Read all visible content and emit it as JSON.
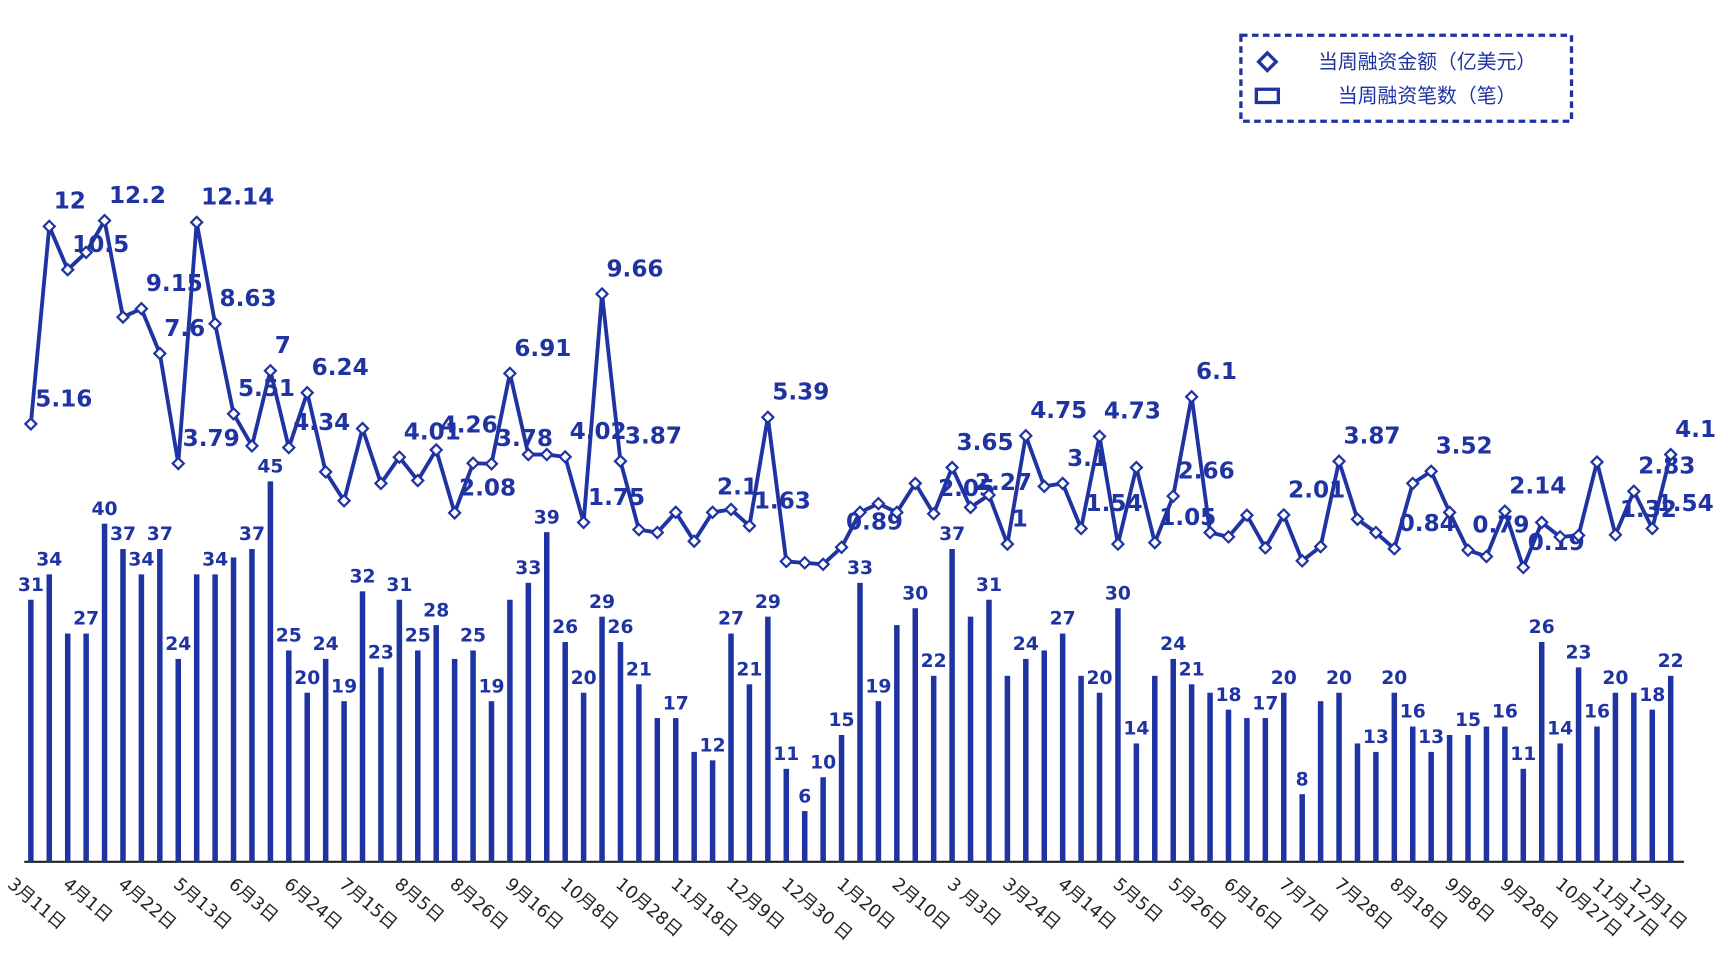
{
  "chart_data": {
    "type": "bar",
    "categories": [
      "3月11日",
      null,
      null,
      "4月1日",
      null,
      null,
      "4月22日",
      null,
      null,
      "5月13日",
      null,
      null,
      "6月3日",
      null,
      null,
      "6月24日",
      null,
      null,
      "7月15日",
      null,
      null,
      "8月5日",
      null,
      null,
      "8月26日",
      null,
      null,
      "9月16日",
      null,
      null,
      "10月8日",
      null,
      null,
      "10月28日",
      null,
      null,
      "11月18日",
      null,
      null,
      "12月9日",
      null,
      null,
      "12月30 日",
      null,
      null,
      "1月20日",
      null,
      null,
      "2月10日",
      null,
      null,
      "3 月3日",
      null,
      null,
      "3月24日",
      null,
      null,
      "4月14日",
      null,
      null,
      "5月5日",
      null,
      null,
      "5月26日",
      null,
      null,
      "6月16日",
      null,
      null,
      "7月7日",
      null,
      null,
      "7月28日",
      null,
      null,
      "8月18日",
      null,
      null,
      "9月8日",
      null,
      null,
      "9月28日",
      null,
      null,
      "10月27日",
      null,
      "11月17日",
      null,
      "12月1日",
      null
    ],
    "series": [
      {
        "name": "当周融资金额（亿美元）",
        "type": "line",
        "axis": "y2",
        "color": "#1f33a3",
        "values": [
          5.16,
          12,
          10.5,
          11.1,
          12.2,
          8.86,
          9.15,
          7.6,
          3.79,
          12.14,
          8.63,
          5.51,
          4.4,
          7,
          4.34,
          6.24,
          3.5,
          2.5,
          5.0,
          3.1,
          4.01,
          3.2,
          4.26,
          2.08,
          3.8,
          3.78,
          6.91,
          4.1,
          4.1,
          4.02,
          1.75,
          9.66,
          3.87,
          1.5,
          1.4,
          2.1,
          1.1,
          2.1,
          2.2,
          1.63,
          5.39,
          0.4,
          0.35,
          0.3,
          0.89,
          2.1,
          2.4,
          2.1,
          3.1,
          2.05,
          3.65,
          2.27,
          2.7,
          1,
          4.75,
          3.0,
          3.1,
          1.54,
          4.73,
          1.0,
          3.65,
          1.05,
          2.66,
          6.1,
          1.4,
          1.25,
          2.0,
          0.87,
          2.01,
          0.42,
          0.91,
          3.87,
          1.86,
          1.4,
          0.84,
          3.1,
          3.52,
          2.1,
          0.79,
          0.57,
          2.14,
          0.19,
          1.75,
          1.25,
          1.3,
          3.84,
          1.32,
          2.83,
          1.54,
          4.1
        ],
        "value_labels": [
          "5.16",
          "12",
          "10.5",
          null,
          "12.2",
          null,
          "9.15",
          "7.6",
          "3.79",
          "12.14",
          "8.63",
          "5.51",
          null,
          "7",
          "4.34",
          "6.24",
          null,
          null,
          null,
          null,
          "4.01",
          null,
          "4.26",
          "2.08",
          null,
          "3.78",
          "6.91",
          null,
          null,
          "4.02",
          "1.75",
          "9.66",
          "3.87",
          null,
          null,
          null,
          null,
          "2.1",
          null,
          "1.63",
          "5.39",
          null,
          null,
          null,
          "0.89",
          null,
          null,
          null,
          null,
          "2.05",
          "3.65",
          "2.27",
          null,
          "1",
          "4.75",
          null,
          "3.1",
          "1.54",
          "4.73",
          null,
          null,
          "1.05",
          "2.66",
          "6.1",
          null,
          null,
          null,
          null,
          "2.01",
          null,
          null,
          "3.87",
          null,
          null,
          "0.84",
          null,
          "3.52",
          null,
          "0.79",
          null,
          "2.14",
          "0.19",
          null,
          null,
          null,
          null,
          "1.32",
          "2.83",
          "1.54",
          "4.1"
        ]
      },
      {
        "name": "当周融资笔数（笔）",
        "type": "bar",
        "color": "#1f33a3",
        "values": [
          31,
          34,
          27,
          27,
          40,
          37,
          34,
          37,
          24,
          34,
          34,
          36,
          37,
          45,
          25,
          20,
          24,
          19,
          32,
          23,
          31,
          25,
          28,
          24,
          25,
          19,
          31,
          33,
          39,
          26,
          20,
          29,
          26,
          21,
          17,
          17,
          13,
          12,
          27,
          21,
          29,
          11,
          6,
          10,
          15,
          33,
          19,
          28,
          30,
          22,
          37,
          29,
          31,
          22,
          24,
          25,
          27,
          22,
          20,
          30,
          14,
          22,
          24,
          21,
          20,
          18,
          17,
          17,
          20,
          8,
          19,
          20,
          14,
          13,
          20,
          16,
          13,
          15,
          15,
          16,
          16,
          11,
          26,
          14,
          23,
          16,
          20,
          20,
          18,
          22
        ],
        "value_labels": [
          "31",
          "34",
          null,
          "27",
          "40",
          "37",
          "34",
          "37",
          "24",
          null,
          "34",
          null,
          "37",
          "45",
          "25",
          "20",
          "24",
          "19",
          "32",
          "23",
          "31",
          "25",
          "28",
          null,
          "25",
          "19",
          null,
          "33",
          "39",
          "26",
          "20",
          "29",
          "26",
          "21",
          null,
          "17",
          null,
          "12",
          "27",
          "21",
          "29",
          "11",
          "6",
          "10",
          "15",
          "33",
          "19",
          null,
          "30",
          "22",
          "37",
          null,
          "31",
          null,
          "24",
          null,
          "27",
          null,
          "20",
          "30",
          "14",
          null,
          "24",
          "21",
          null,
          "18",
          null,
          "17",
          "20",
          "8",
          null,
          "20",
          null,
          "13",
          "20",
          "16",
          "13",
          null,
          "15",
          null,
          "16",
          "11",
          "26",
          "14",
          "23",
          "16",
          "20",
          null,
          "18",
          "22"
        ]
      }
    ],
    "ylim": [
      0,
      82
    ],
    "y2lim": [
      -10,
      14
    ],
    "legend": "top-right"
  }
}
